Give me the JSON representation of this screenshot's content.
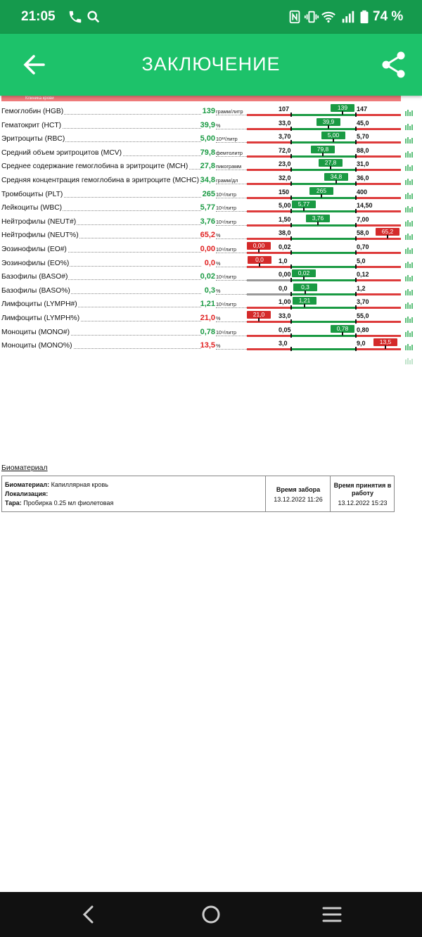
{
  "status_bar": {
    "time": "21:05",
    "battery": "74 %",
    "icons": [
      "phone-icon",
      "search-icon",
      "nfc-icon",
      "vibrate-icon",
      "wifi-icon",
      "signal-icon",
      "battery-icon"
    ]
  },
  "app_bar": {
    "title": "ЗАКЛЮЧЕНИЕ",
    "back_icon": "arrow-left-icon",
    "share_icon": "share-icon",
    "color": "#1dc26a"
  },
  "doc": {
    "header_strip": "Клиника крови"
  },
  "results": [
    {
      "name": "Гемоглобин (HGB)",
      "value": "139",
      "unit": "грамм/литр",
      "low": "107",
      "high": "147",
      "badge": "139",
      "status": "ok"
    },
    {
      "name": "Гематокрит (HCT)",
      "value": "39,9",
      "unit": "%",
      "low": "33,0",
      "high": "45,0",
      "badge": "39,9",
      "status": "ok"
    },
    {
      "name": "Эритроциты (RBC)",
      "value": "5,00",
      "unit": "10¹²/литр",
      "low": "3,70",
      "high": "5,70",
      "badge": "5,00",
      "status": "ok"
    },
    {
      "name": "Средний объем эритроцитов (MCV)",
      "value": "79,8",
      "unit": "фемтолитр",
      "low": "72,0",
      "high": "88,0",
      "badge": "79,8",
      "status": "ok"
    },
    {
      "name": "Среднее содержание гемоглобина в эритроците (MCH)",
      "value": "27,8",
      "unit": "пикограмм",
      "low": "23,0",
      "high": "31,0",
      "badge": "27,8",
      "status": "ok"
    },
    {
      "name": "Средняя концентрация гемоглобина в эритроците (MCHC)",
      "value": "34,8",
      "unit": "грамм/дл",
      "low": "32,0",
      "high": "36,0",
      "badge": "34,8",
      "status": "ok"
    },
    {
      "name": "Тромбоциты (PLT)",
      "value": "265",
      "unit": "10⁹/литр",
      "low": "150",
      "high": "400",
      "badge": "265",
      "status": "ok"
    },
    {
      "name": "Лейкоциты (WBC)",
      "value": "5,77",
      "unit": "10⁹/литр",
      "low": "5,00",
      "high": "14,50",
      "badge": "5,77",
      "status": "ok"
    },
    {
      "name": "Нейтрофилы (NEUT#)",
      "value": "3,76",
      "unit": "10⁹/литр",
      "low": "1,50",
      "high": "7,00",
      "badge": "3,76",
      "status": "ok"
    },
    {
      "name": "Нейтрофилы (NEUT%)",
      "value": "65,2",
      "unit": "%",
      "low": "38,0",
      "high": "58,0",
      "badge": "65,2",
      "status": "bad"
    },
    {
      "name": "Эозинофилы (EO#)",
      "value": "0,00",
      "unit": "10⁹/литр",
      "low": "0,02",
      "high": "0,70",
      "badge": "0,00",
      "status": "bad"
    },
    {
      "name": "Эозинофилы (EO%)",
      "value": "0,0",
      "unit": "%",
      "low": "1,0",
      "high": "5,0",
      "badge": "0,0",
      "status": "bad"
    },
    {
      "name": "Базофилы (BASO#)",
      "value": "0,02",
      "unit": "10⁹/литр",
      "low": "0,00",
      "high": "0,12",
      "badge": "0,02",
      "status": "ok"
    },
    {
      "name": "Базофилы (BASO%)",
      "value": "0,3",
      "unit": "%",
      "low": "0,0",
      "high": "1,2",
      "badge": "0,3",
      "status": "ok"
    },
    {
      "name": "Лимфоциты (LYMPH#)",
      "value": "1,21",
      "unit": "10⁹/литр",
      "low": "1,00",
      "high": "3,70",
      "badge": "1,21",
      "status": "ok"
    },
    {
      "name": "Лимфоциты (LYMPH%)",
      "value": "21,0",
      "unit": "%",
      "low": "33,0",
      "high": "55,0",
      "badge": "21,0",
      "status": "bad"
    },
    {
      "name": "Моноциты (MONO#)",
      "value": "0,78",
      "unit": "10⁹/литр",
      "low": "0,05",
      "high": "0,80",
      "badge": "0,78",
      "status": "ok"
    },
    {
      "name": "Моноциты (MONO%)",
      "value": "13,5",
      "unit": "%",
      "low": "3,0",
      "high": "9,0",
      "badge": "13,5",
      "status": "bad"
    }
  ],
  "biomaterial": {
    "section_title": "Биоматериал",
    "material_label": "Биоматериал:",
    "material_value": "Капиллярная кровь",
    "location_label": "Локализация:",
    "location_value": "",
    "container_label": "Тара:",
    "container_value": "Пробирка 0.25 мл фиолетовая",
    "collect_header": "Время забора",
    "collect_time": "13.12.2022 11:26",
    "accept_header": "Время принятия в работу",
    "accept_time": "13.12.2022 15:23"
  },
  "nav_bar": {
    "icons": [
      "nav-back-icon",
      "nav-home-icon",
      "nav-recents-icon"
    ]
  },
  "colors": {
    "ok": "#1a9a43",
    "bad": "#d42a2a",
    "status_bar": "#159a4d"
  }
}
